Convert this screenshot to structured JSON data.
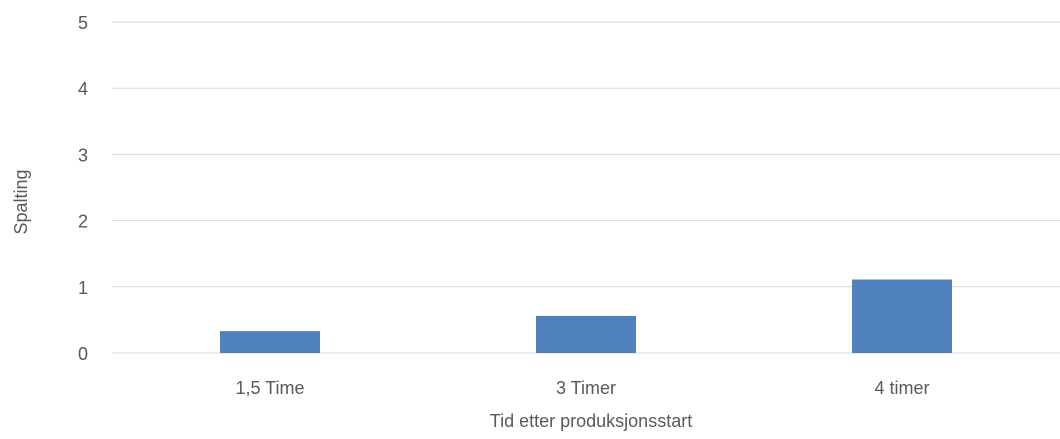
{
  "chart_data": {
    "type": "bar",
    "title": "",
    "xlabel": "Tid etter produksjonsstart",
    "ylabel": "Spalting",
    "categories": [
      "1,5 Time",
      "3 Timer",
      "4 timer"
    ],
    "values": [
      0.33,
      0.56,
      1.11
    ],
    "ylim": [
      0,
      5
    ],
    "yticks": [
      "0",
      "1",
      "2",
      "3",
      "4",
      "5"
    ],
    "grid": true,
    "legend": "none",
    "bar_color": "#4f81bd",
    "grid_color": "#d9d9d9",
    "text_color": "#595959"
  }
}
